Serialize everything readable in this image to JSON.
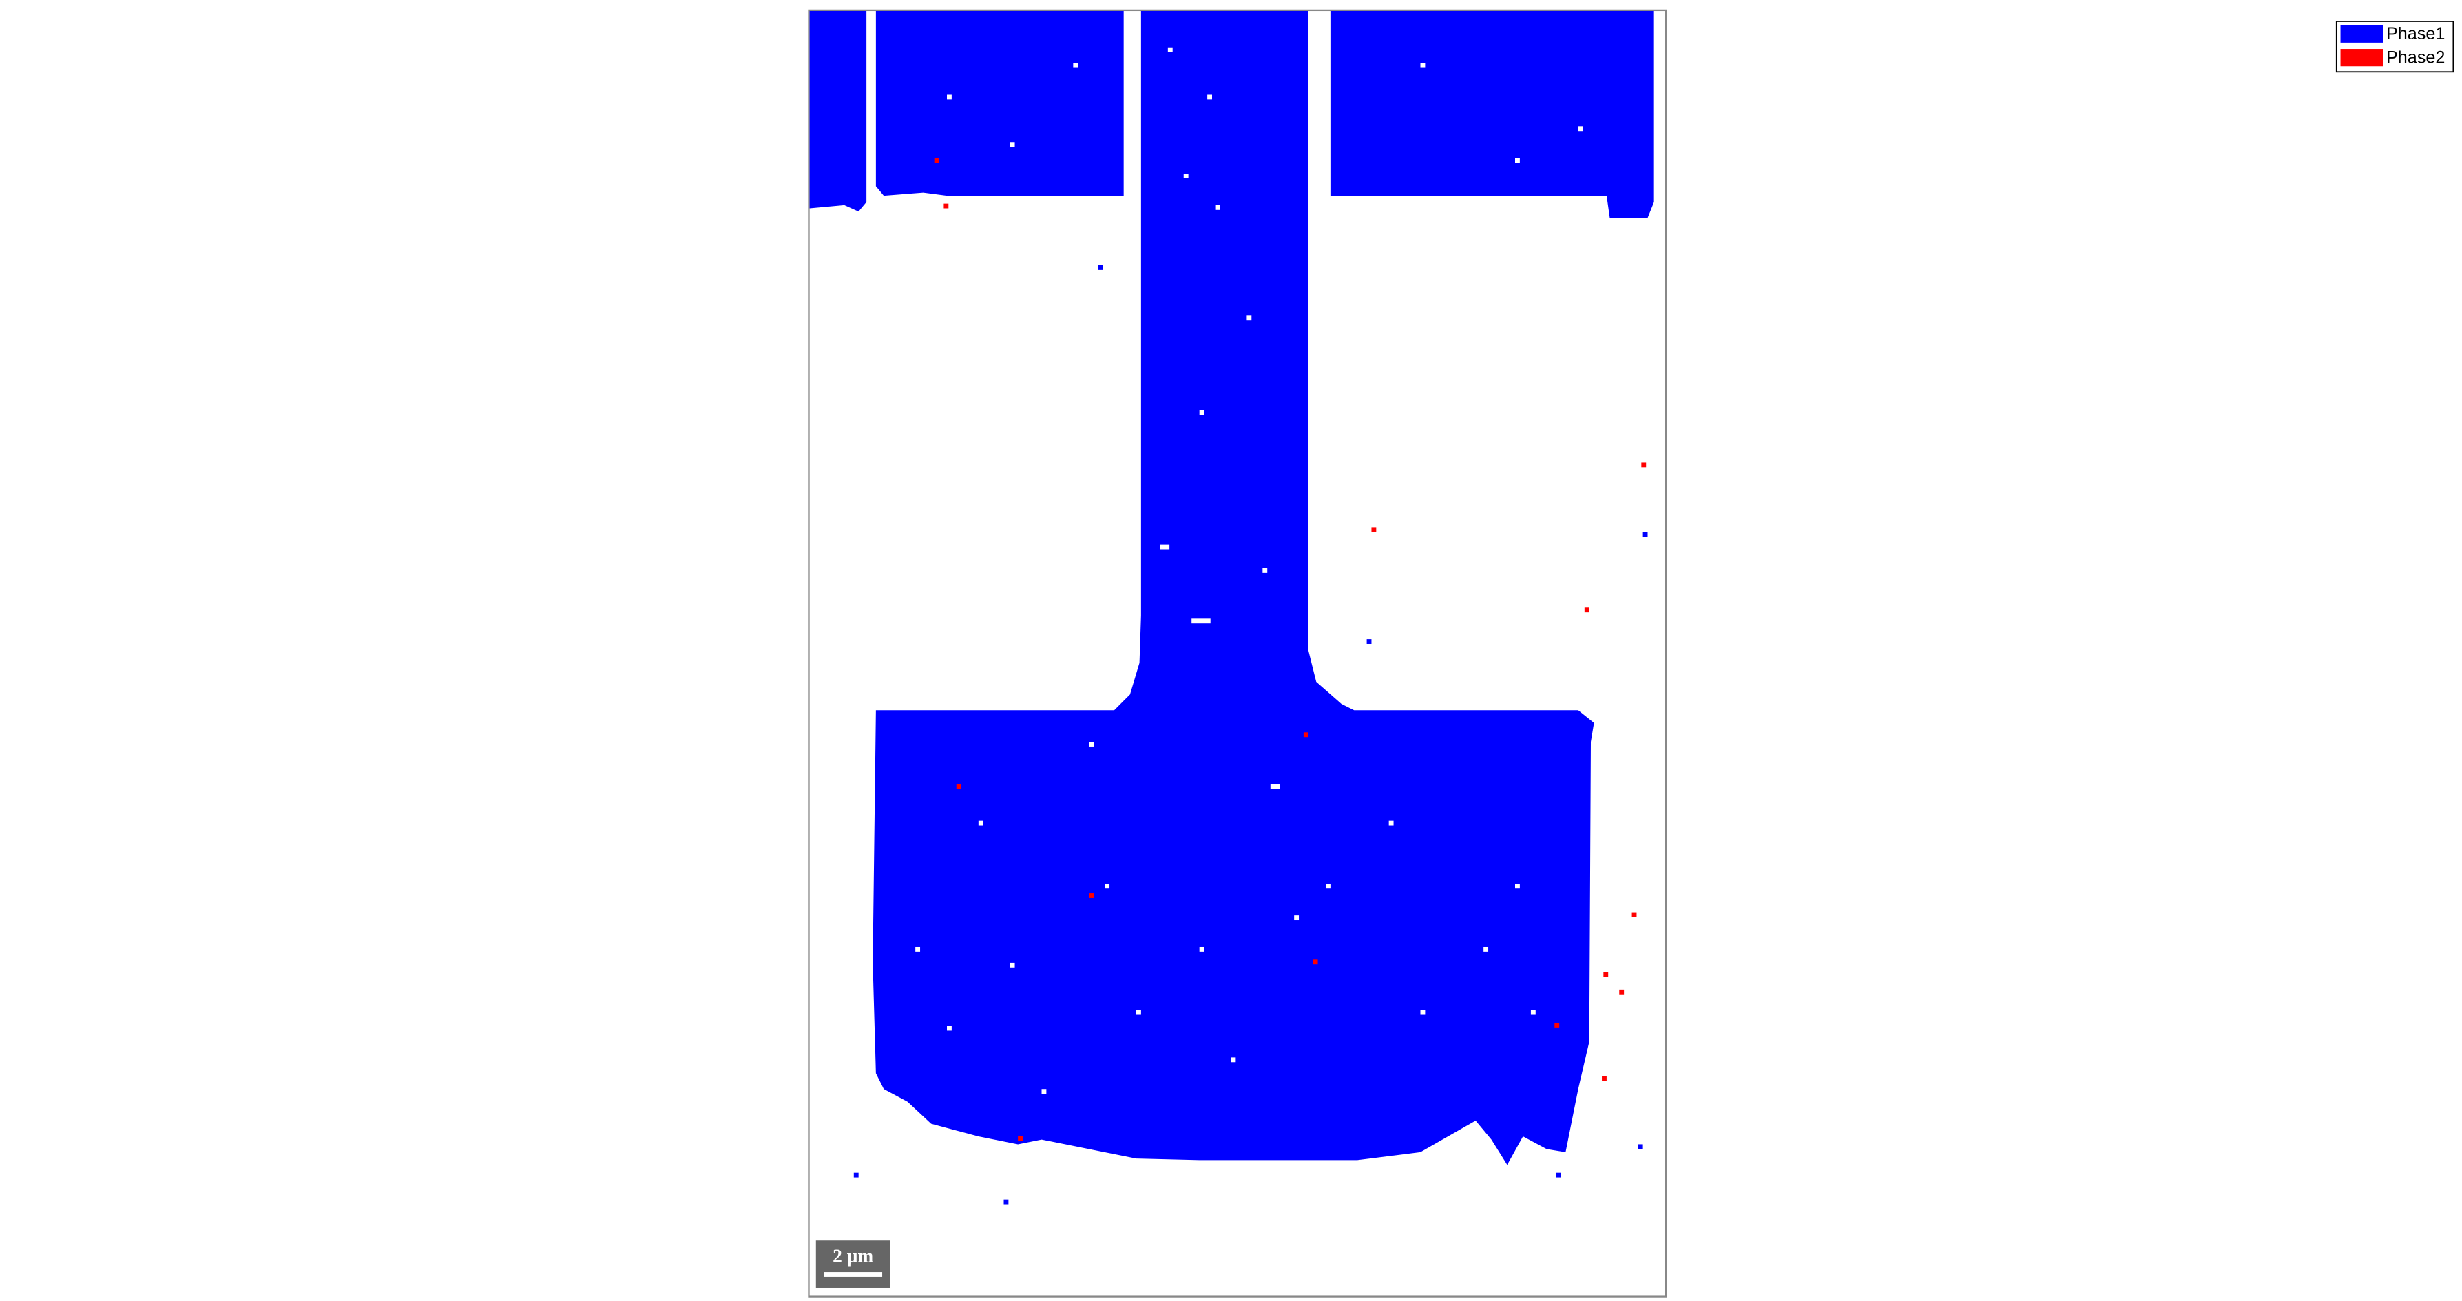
{
  "legend": {
    "items": [
      {
        "label": "Phase1",
        "color": "#0000ff"
      },
      {
        "label": "Phase2",
        "color": "#ff0000"
      }
    ]
  },
  "scale_bar": {
    "label": "2 μm"
  }
}
